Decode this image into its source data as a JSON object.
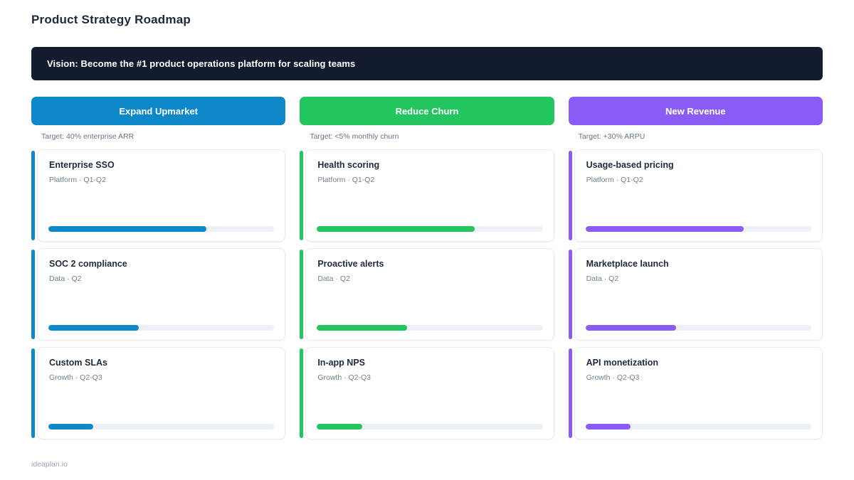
{
  "page": {
    "title": "Product Strategy Roadmap",
    "vision": "Vision: Become the #1 product operations platform for scaling teams",
    "footer": "ideaplan.io"
  },
  "colors": {
    "banner_bg": "#131c2e",
    "blue": "#0e88c9",
    "green": "#22c55e",
    "purple": "#8a5cf5",
    "track": "#edf1f6"
  },
  "columns": [
    {
      "label": "Expand Upmarket",
      "target": "Target: 40% enterprise ARR",
      "color": "#0e88c9",
      "cards": [
        {
          "title": "Enterprise SSO",
          "meta": "Platform · Q1-Q2",
          "progress": 70
        },
        {
          "title": "SOC 2 compliance",
          "meta": "Data · Q2",
          "progress": 40
        },
        {
          "title": "Custom SLAs",
          "meta": "Growth · Q2-Q3",
          "progress": 20
        }
      ]
    },
    {
      "label": "Reduce Churn",
      "target": "Target: <5% monthly churn",
      "color": "#22c55e",
      "cards": [
        {
          "title": "Health scoring",
          "meta": "Platform · Q1-Q2",
          "progress": 70
        },
        {
          "title": "Proactive alerts",
          "meta": "Data · Q2",
          "progress": 40
        },
        {
          "title": "In-app NPS",
          "meta": "Growth · Q2-Q3",
          "progress": 20
        }
      ]
    },
    {
      "label": "New Revenue",
      "target": "Target: +30% ARPU",
      "color": "#8a5cf5",
      "cards": [
        {
          "title": "Usage-based pricing",
          "meta": "Platform · Q1-Q2",
          "progress": 70
        },
        {
          "title": "Marketplace launch",
          "meta": "Data · Q2",
          "progress": 40
        },
        {
          "title": "API monetization",
          "meta": "Growth · Q2-Q3",
          "progress": 20
        }
      ]
    }
  ]
}
